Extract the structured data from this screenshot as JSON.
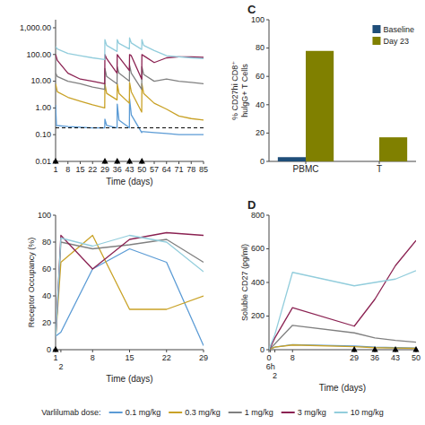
{
  "chart_data": [
    {
      "type": "line",
      "log": "y",
      "xlabel": "Time (days)",
      "xlim": [
        1,
        85
      ],
      "xticks": [
        1,
        8,
        15,
        22,
        29,
        36,
        43,
        50,
        57,
        64,
        71,
        78,
        85
      ],
      "ylim": [
        0.01,
        2000
      ],
      "yticks": [
        0.01,
        {
          "value": 0.1,
          "label": "0.10"
        },
        {
          "value": 1.0,
          "label": "1.00"
        },
        {
          "value": 10.0,
          "label": "10.00"
        },
        {
          "value": 100.0,
          "label": "100.00"
        },
        {
          "value": 1000.0,
          "label": "1,000.00"
        }
      ],
      "legend": "bottom",
      "legend_title": "Varlilumab dose:",
      "series": [
        {
          "name": "0.1 mg/kg",
          "color": "#5b9bd5",
          "x": [
            1,
            1.5,
            8,
            15,
            22,
            28.9,
            29,
            30,
            35.9,
            36,
            37,
            42.9,
            43,
            44,
            49.9,
            50,
            51,
            57,
            64,
            71,
            78,
            85
          ],
          "values": [
            1.3,
            0.22,
            0.2,
            0.19,
            0.18,
            0.18,
            0.38,
            0.22,
            0.18,
            1.4,
            0.35,
            0.18,
            2.2,
            0.55,
            0.12,
            0.13,
            0.13,
            0.12,
            0.11,
            0.1,
            0.1,
            0.1
          ]
        },
        {
          "name": "0.3 mg/kg",
          "color": "#c9a227",
          "x": [
            1,
            2,
            8,
            15,
            22,
            28.9,
            29,
            30,
            35.9,
            36,
            37,
            42.9,
            43,
            44,
            49.9,
            50,
            51,
            57,
            64,
            71,
            78,
            85
          ],
          "values": [
            8,
            4,
            2.5,
            1.8,
            1.3,
            1.0,
            8.0,
            3.5,
            2.0,
            8.0,
            3.5,
            1.5,
            9.0,
            4.0,
            0.7,
            8.0,
            3.5,
            1.5,
            0.9,
            0.5,
            0.4,
            0.35
          ]
        },
        {
          "name": "1 mg/kg",
          "color": "#808080",
          "x": [
            1,
            2,
            8,
            15,
            22,
            28.9,
            29,
            30,
            35.9,
            36,
            37,
            42.9,
            43,
            44,
            49.9,
            50,
            51,
            57,
            64,
            71,
            78,
            85
          ],
          "values": [
            20,
            15,
            10,
            8,
            6,
            5,
            30,
            15,
            8,
            35,
            20,
            10,
            40,
            20,
            5,
            35,
            18,
            10,
            12,
            10,
            9,
            8
          ]
        },
        {
          "name": "3 mg/kg",
          "color": "#8b2252",
          "x": [
            1,
            2,
            8,
            15,
            22,
            28.9,
            29,
            30,
            35.9,
            36,
            37,
            42.9,
            43,
            44,
            49.9,
            50,
            51,
            57,
            64,
            71,
            78,
            85
          ],
          "values": [
            100,
            60,
            20,
            12,
            10,
            8,
            100,
            70,
            20,
            100,
            80,
            25,
            100,
            90,
            12,
            100,
            90,
            50,
            75,
            82,
            82,
            78
          ]
        },
        {
          "name": "10 mg/kg",
          "color": "#92cddc",
          "x": [
            1,
            2,
            8,
            15,
            22,
            28.9,
            29,
            30,
            35.9,
            36,
            37,
            42.9,
            43,
            44,
            49.9,
            50,
            51,
            57,
            64,
            71,
            78,
            85
          ],
          "values": [
            200,
            160,
            110,
            90,
            75,
            65,
            360,
            220,
            130,
            360,
            260,
            160,
            420,
            270,
            155,
            360,
            220,
            140,
            90,
            82,
            75,
            70
          ]
        },
        {
          "type": "line",
          "line_style": "dashed",
          "color": "#000000",
          "x": [
            1,
            85
          ],
          "values": [
            0.18,
            0.18
          ]
        },
        {
          "type": "scatter",
          "marker": "triangle",
          "color": "#000000",
          "x": [
            1,
            29,
            36,
            43,
            50
          ],
          "values": [
            0.01,
            0.01,
            0.01,
            0.01,
            0.01
          ]
        }
      ]
    },
    {
      "type": "bar",
      "title": "C",
      "ylabel": "% CD27hi CD8⁺\nhulgG+ T Cells",
      "categories": [
        "PBMC",
        "T"
      ],
      "ylim": [
        0,
        100
      ],
      "yticks": [
        0,
        20,
        40,
        60,
        80,
        100
      ],
      "legend": "top-right",
      "series": [
        {
          "name": "Baseline",
          "color": "#1f4e79",
          "values": [
            3,
            0
          ]
        },
        {
          "name": "Day 23",
          "color": "#808000",
          "values": [
            78,
            17
          ]
        }
      ]
    },
    {
      "type": "line",
      "xlabel": "Time (days)",
      "ylabel": "Receptor Occupancy (%)",
      "xlim": [
        1,
        29
      ],
      "xticks": [
        1,
        2,
        8,
        15,
        22,
        29
      ],
      "ylim": [
        0,
        100
      ],
      "yticks": [
        0,
        20,
        40,
        60,
        80,
        100
      ],
      "series": [
        {
          "color": "#5b9bd5",
          "x": [
            1,
            2,
            8,
            15,
            22,
            29
          ],
          "values": [
            10,
            13,
            60,
            75,
            65,
            3
          ]
        },
        {
          "color": "#c9a227",
          "x": [
            1,
            2,
            8,
            15,
            22,
            29
          ],
          "values": [
            8,
            65,
            85,
            30,
            30,
            40
          ]
        },
        {
          "color": "#808080",
          "x": [
            1,
            2,
            8,
            15,
            22,
            29
          ],
          "values": [
            8,
            80,
            75,
            78,
            82,
            65
          ]
        },
        {
          "color": "#8b2252",
          "x": [
            1,
            2,
            8,
            15,
            22,
            29
          ],
          "values": [
            8,
            85,
            60,
            82,
            87,
            85
          ]
        },
        {
          "color": "#92cddc",
          "x": [
            1,
            2,
            8,
            15,
            22,
            29
          ],
          "values": [
            8,
            83,
            77,
            85,
            80,
            58
          ]
        },
        {
          "type": "scatter",
          "marker": "triangle",
          "color": "#000000",
          "x": [
            1
          ],
          "values": [
            0
          ]
        }
      ]
    },
    {
      "type": "line",
      "title": "D",
      "xlabel": "Time (days)",
      "ylabel": "Soluble CD27 (pg/ml)",
      "xlim": [
        0,
        50
      ],
      "xticks": [
        0,
        {
          "value": 0.5,
          "label": "6h"
        },
        2,
        8,
        29,
        36,
        43,
        50
      ],
      "ylim": [
        0,
        800
      ],
      "yticks": [
        0,
        200,
        400,
        600,
        800
      ],
      "series": [
        {
          "color": "#5b9bd5",
          "x": [
            0,
            0.5,
            2,
            8,
            29,
            36,
            43,
            50
          ],
          "values": [
            0,
            5,
            15,
            30,
            22,
            15,
            12,
            10
          ]
        },
        {
          "color": "#c9a227",
          "x": [
            0,
            0.5,
            2,
            8,
            29,
            36,
            43,
            50
          ],
          "values": [
            0,
            5,
            15,
            28,
            18,
            12,
            10,
            8
          ]
        },
        {
          "color": "#808080",
          "x": [
            0,
            0.5,
            2,
            8,
            29,
            36,
            43,
            50
          ],
          "values": [
            0,
            8,
            35,
            145,
            100,
            70,
            55,
            45
          ]
        },
        {
          "color": "#8b2252",
          "x": [
            0,
            0.5,
            2,
            8,
            29,
            36,
            43,
            50
          ],
          "values": [
            0,
            15,
            70,
            250,
            140,
            300,
            500,
            650
          ]
        },
        {
          "color": "#92cddc",
          "x": [
            0,
            0.5,
            2,
            8,
            29,
            36,
            43,
            50
          ],
          "values": [
            0,
            25,
            90,
            460,
            380,
            400,
            420,
            470
          ]
        },
        {
          "type": "scatter",
          "marker": "triangle",
          "color": "#000000",
          "x": [
            29,
            36,
            43,
            50
          ],
          "values": [
            0,
            0,
            0,
            0
          ]
        }
      ]
    }
  ]
}
